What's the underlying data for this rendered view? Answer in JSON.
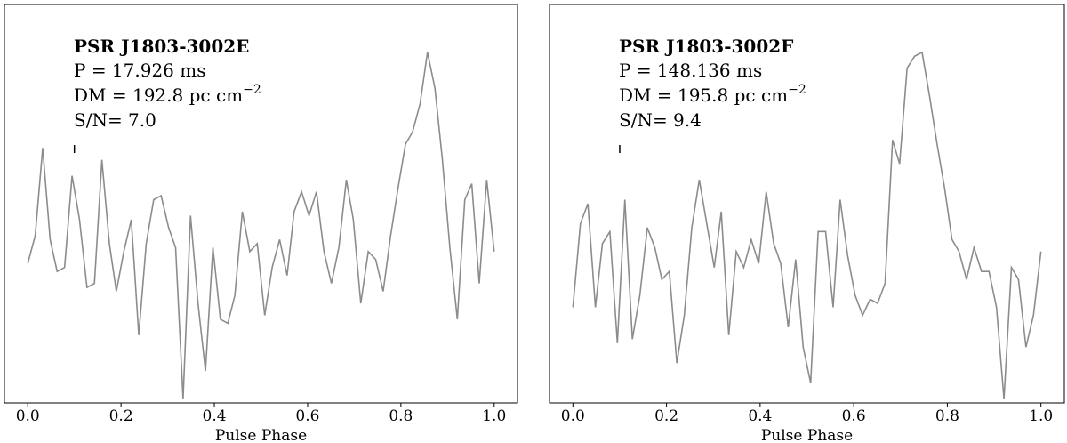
{
  "chart_data": [
    {
      "type": "line",
      "title": "PSR J1803-3002E",
      "annotations": [
        "P = 17.926 ms",
        "DM = 192.8 pc cm",
        "S/N= 7.0"
      ],
      "annotation_superscript": "−2",
      "xlabel": "Pulse Phase",
      "marker_x": 0.1,
      "xlim": [
        -0.05,
        1.05
      ],
      "ylim": [
        0,
        1
      ],
      "xticks": [
        {
          "value": 0,
          "label": "0.0"
        },
        0.2,
        0.4,
        0.6,
        0.8,
        {
          "value": 1,
          "label": "1.0"
        }
      ],
      "series": [
        {
          "color": "#8c8c8c",
          "x": [
            0,
            0.016,
            0.032,
            0.048,
            0.063,
            0.079,
            0.095,
            0.111,
            0.127,
            0.143,
            0.159,
            0.175,
            0.19,
            0.206,
            0.222,
            0.238,
            0.254,
            0.27,
            0.286,
            0.302,
            0.317,
            0.333,
            0.349,
            0.365,
            0.381,
            0.397,
            0.413,
            0.429,
            0.444,
            0.46,
            0.476,
            0.492,
            0.508,
            0.524,
            0.54,
            0.556,
            0.571,
            0.587,
            0.603,
            0.619,
            0.635,
            0.651,
            0.667,
            0.683,
            0.698,
            0.714,
            0.73,
            0.746,
            0.762,
            0.778,
            0.794,
            0.81,
            0.825,
            0.841,
            0.857,
            0.873,
            0.889,
            0.905,
            0.921,
            0.937,
            0.952,
            0.968,
            0.984,
            1
          ],
          "values": [
            0.35,
            0.42,
            0.64,
            0.41,
            0.33,
            0.34,
            0.57,
            0.46,
            0.29,
            0.3,
            0.61,
            0.4,
            0.28,
            0.38,
            0.46,
            0.17,
            0.4,
            0.51,
            0.52,
            0.44,
            0.39,
            0.01,
            0.47,
            0.25,
            0.08,
            0.39,
            0.21,
            0.2,
            0.27,
            0.48,
            0.38,
            0.4,
            0.22,
            0.34,
            0.41,
            0.32,
            0.48,
            0.53,
            0.47,
            0.53,
            0.38,
            0.3,
            0.39,
            0.56,
            0.46,
            0.25,
            0.38,
            0.36,
            0.28,
            0.42,
            0.54,
            0.65,
            0.68,
            0.75,
            0.88,
            0.79,
            0.61,
            0.39,
            0.21,
            0.51,
            0.55,
            0.3,
            0.56,
            0.38
          ]
        }
      ]
    },
    {
      "type": "line",
      "title": "PSR J1803-3002F",
      "annotations": [
        "P = 148.136 ms",
        "DM = 195.8 pc cm",
        "S/N= 9.4"
      ],
      "annotation_superscript": "−2",
      "xlabel": "Pulse Phase",
      "marker_x": 0.1,
      "xlim": [
        -0.05,
        1.05
      ],
      "ylim": [
        0,
        1
      ],
      "xticks": [
        {
          "value": 0,
          "label": "0.0"
        },
        0.2,
        0.4,
        0.6,
        0.8,
        {
          "value": 1,
          "label": "1.0"
        }
      ],
      "series": [
        {
          "color": "#8c8c8c",
          "x": [
            0,
            0.016,
            0.032,
            0.048,
            0.063,
            0.079,
            0.095,
            0.111,
            0.127,
            0.143,
            0.159,
            0.175,
            0.19,
            0.206,
            0.222,
            0.238,
            0.254,
            0.27,
            0.286,
            0.302,
            0.317,
            0.333,
            0.349,
            0.365,
            0.381,
            0.397,
            0.413,
            0.429,
            0.444,
            0.46,
            0.476,
            0.492,
            0.508,
            0.524,
            0.54,
            0.556,
            0.571,
            0.587,
            0.603,
            0.619,
            0.635,
            0.651,
            0.667,
            0.683,
            0.698,
            0.714,
            0.73,
            0.746,
            0.762,
            0.778,
            0.794,
            0.81,
            0.825,
            0.841,
            0.857,
            0.873,
            0.889,
            0.905,
            0.921,
            0.937,
            0.952,
            0.968,
            0.984,
            1
          ],
          "values": [
            0.24,
            0.45,
            0.5,
            0.24,
            0.4,
            0.43,
            0.15,
            0.51,
            0.16,
            0.27,
            0.44,
            0.39,
            0.31,
            0.33,
            0.1,
            0.22,
            0.44,
            0.56,
            0.45,
            0.34,
            0.48,
            0.17,
            0.38,
            0.34,
            0.41,
            0.35,
            0.53,
            0.4,
            0.35,
            0.19,
            0.36,
            0.14,
            0.05,
            0.43,
            0.43,
            0.24,
            0.51,
            0.37,
            0.27,
            0.22,
            0.26,
            0.25,
            0.3,
            0.66,
            0.6,
            0.84,
            0.87,
            0.88,
            0.77,
            0.65,
            0.54,
            0.41,
            0.38,
            0.31,
            0.39,
            0.33,
            0.33,
            0.24,
            0.01,
            0.34,
            0.31,
            0.14,
            0.22,
            0.38
          ]
        }
      ]
    }
  ]
}
